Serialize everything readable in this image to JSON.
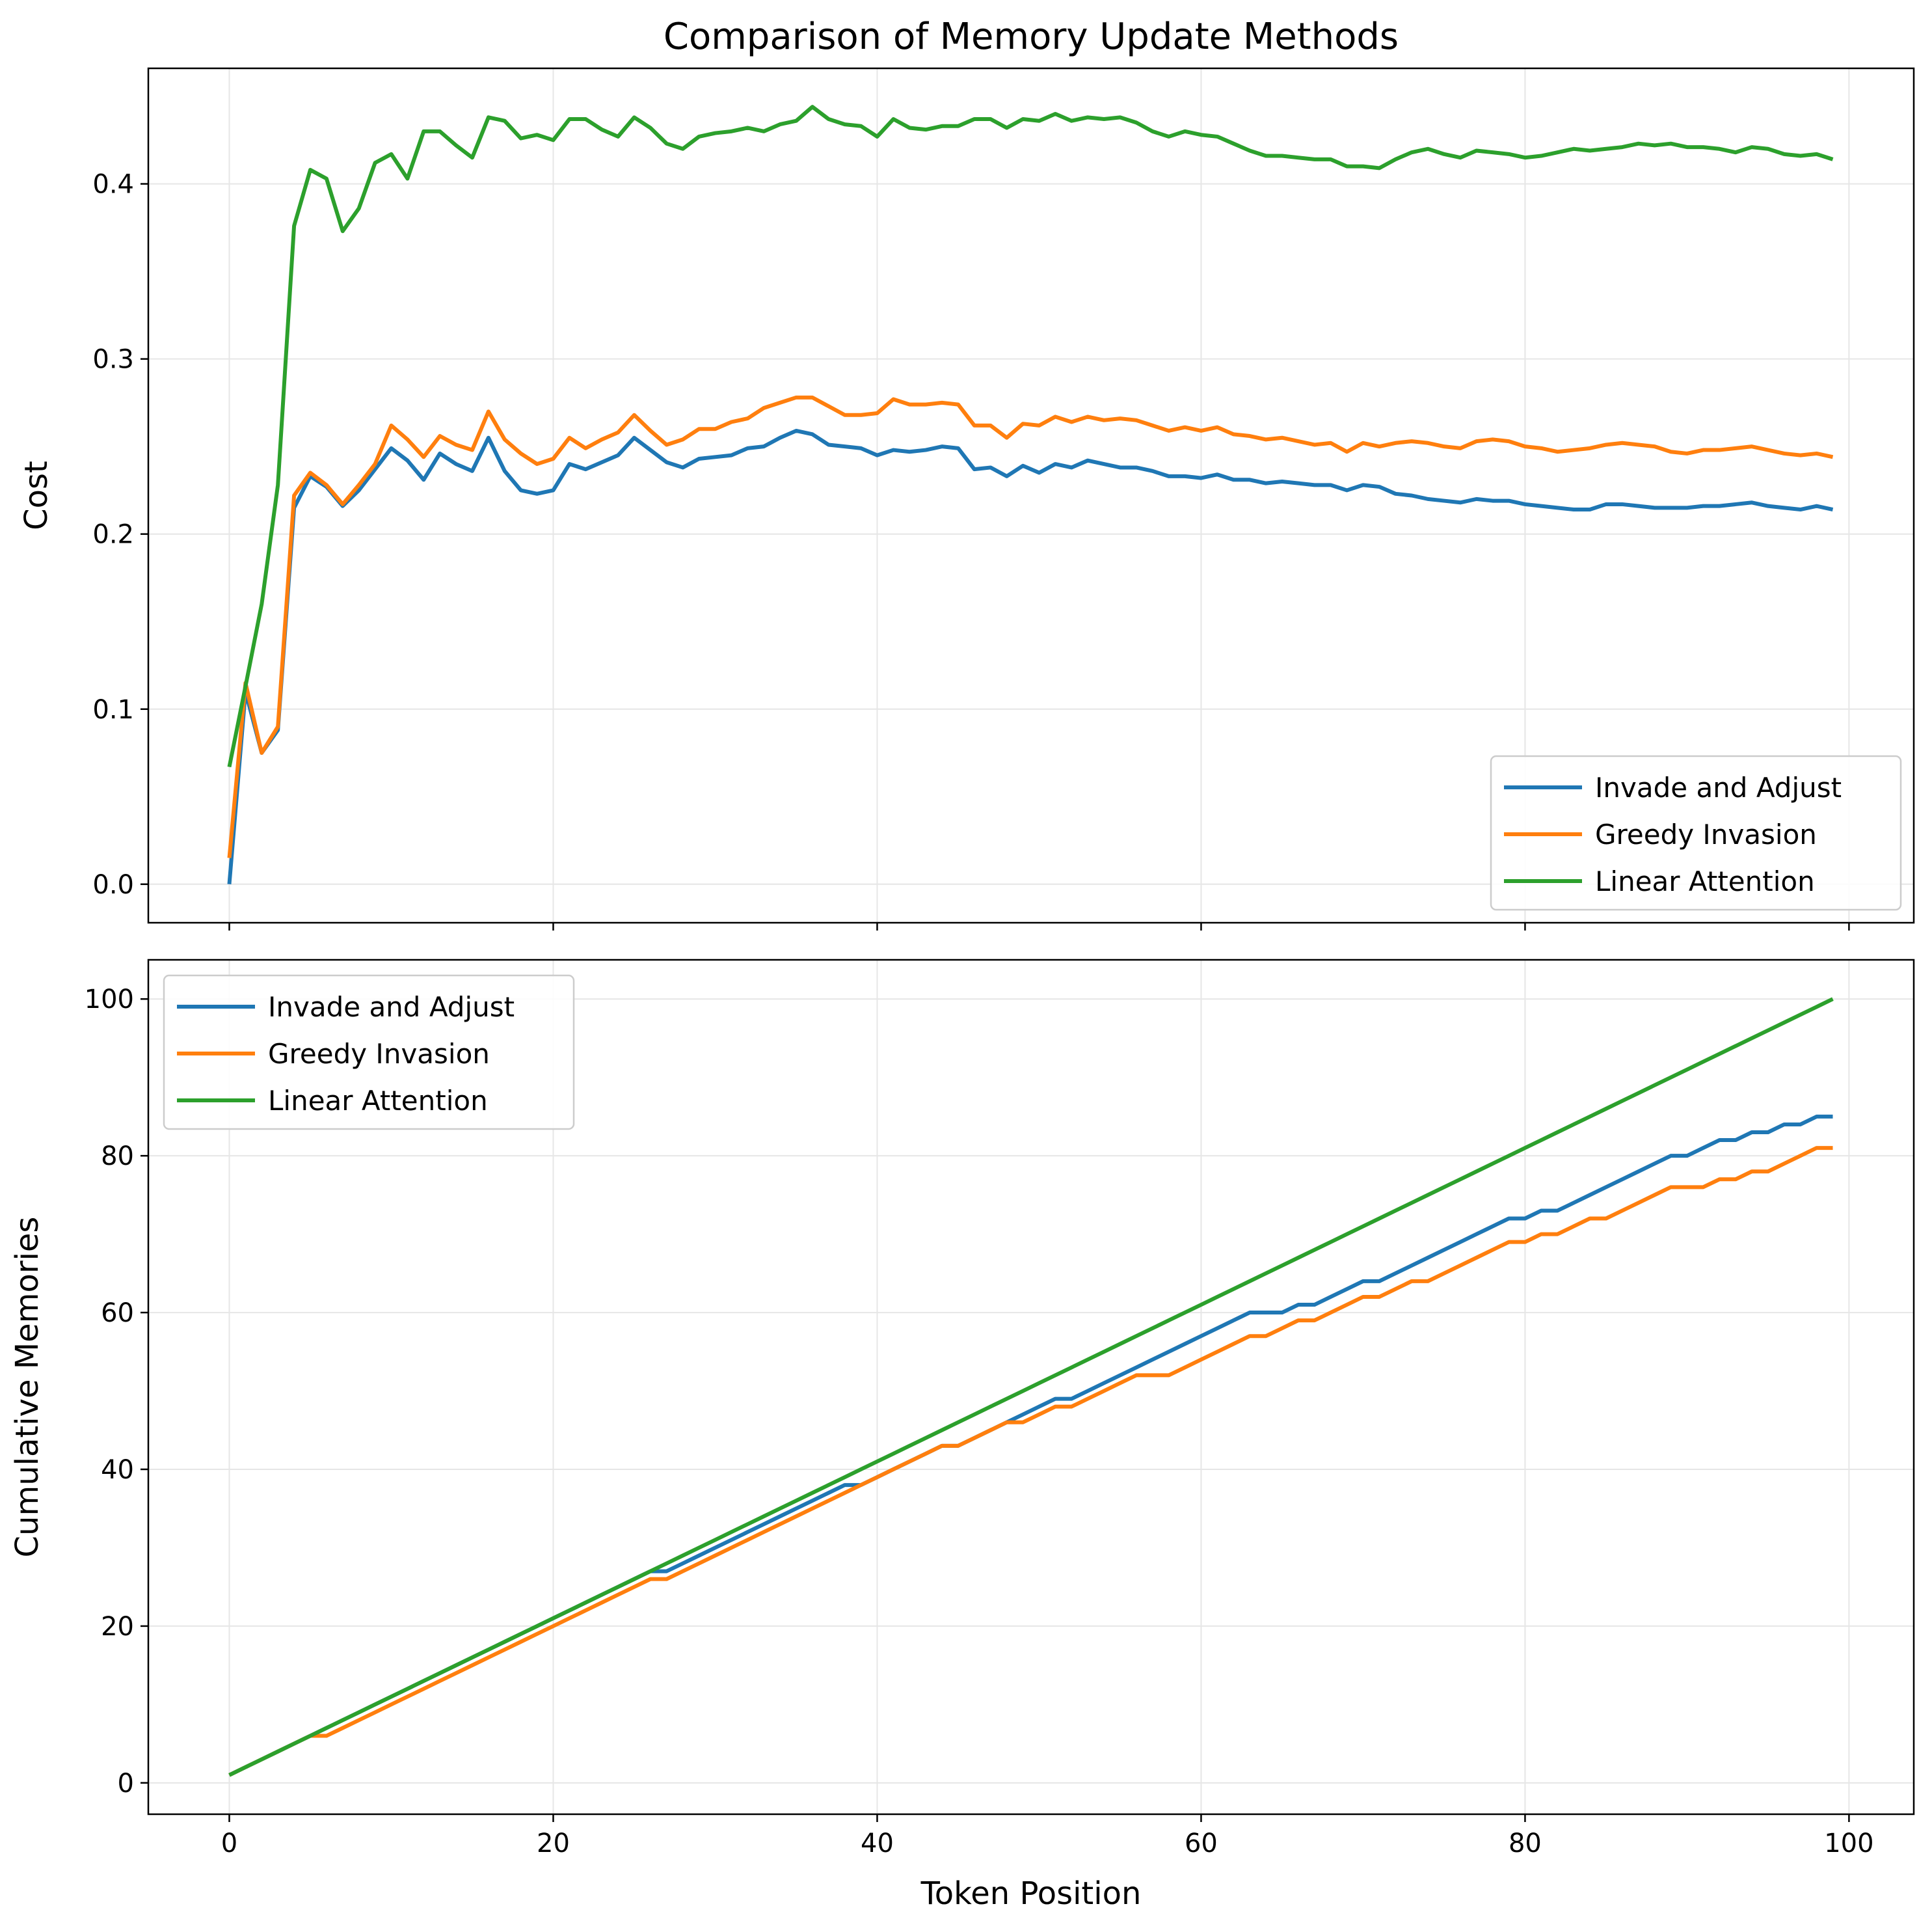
{
  "title": "Comparison of Memory Update Methods",
  "chart_data": [
    {
      "type": "line",
      "xlabel": "",
      "ylabel": "Cost",
      "xlim": [
        -5,
        104
      ],
      "ylim": [
        -0.022,
        0.466
      ],
      "xticks": [
        0,
        20,
        40,
        60,
        80,
        100
      ],
      "yticks": [
        0.0,
        0.1,
        0.2,
        0.3,
        0.4
      ],
      "yticklabels": [
        "0.0",
        "0.1",
        "0.2",
        "0.3",
        "0.4"
      ],
      "show_xticklabels": false,
      "grid": true,
      "legend_loc": "lower-right",
      "series": [
        {
          "name": "Invade and Adjust",
          "color": "#1f77b4",
          "values": [
            0.0,
            0.11,
            0.075,
            0.088,
            0.215,
            0.233,
            0.227,
            0.216,
            0.225,
            0.237,
            0.249,
            0.242,
            0.231,
            0.246,
            0.24,
            0.236,
            0.255,
            0.236,
            0.225,
            0.223,
            0.225,
            0.24,
            0.237,
            0.241,
            0.245,
            0.255,
            0.248,
            0.241,
            0.238,
            0.243,
            0.244,
            0.245,
            0.249,
            0.25,
            0.255,
            0.259,
            0.257,
            0.251,
            0.25,
            0.249,
            0.245,
            0.248,
            0.247,
            0.248,
            0.25,
            0.249,
            0.237,
            0.238,
            0.233,
            0.239,
            0.235,
            0.24,
            0.238,
            0.242,
            0.24,
            0.238,
            0.238,
            0.236,
            0.233,
            0.233,
            0.232,
            0.234,
            0.231,
            0.231,
            0.229,
            0.23,
            0.229,
            0.228,
            0.228,
            0.225,
            0.228,
            0.227,
            0.223,
            0.222,
            0.22,
            0.219,
            0.218,
            0.22,
            0.219,
            0.219,
            0.217,
            0.216,
            0.215,
            0.214,
            0.214,
            0.217,
            0.217,
            0.216,
            0.215,
            0.215,
            0.215,
            0.216,
            0.216,
            0.217,
            0.218,
            0.216,
            0.215,
            0.214,
            0.216,
            0.214
          ]
        },
        {
          "name": "Greedy Invasion",
          "color": "#ff7f0e",
          "values": [
            0.015,
            0.115,
            0.075,
            0.09,
            0.222,
            0.235,
            0.228,
            0.217,
            0.228,
            0.24,
            0.262,
            0.254,
            0.244,
            0.256,
            0.251,
            0.248,
            0.27,
            0.254,
            0.246,
            0.24,
            0.243,
            0.255,
            0.249,
            0.254,
            0.258,
            0.268,
            0.259,
            0.251,
            0.254,
            0.26,
            0.26,
            0.264,
            0.266,
            0.272,
            0.275,
            0.278,
            0.278,
            0.273,
            0.268,
            0.268,
            0.269,
            0.277,
            0.274,
            0.274,
            0.275,
            0.274,
            0.262,
            0.262,
            0.255,
            0.263,
            0.262,
            0.267,
            0.264,
            0.267,
            0.265,
            0.266,
            0.265,
            0.262,
            0.259,
            0.261,
            0.259,
            0.261,
            0.257,
            0.256,
            0.254,
            0.255,
            0.253,
            0.251,
            0.252,
            0.247,
            0.252,
            0.25,
            0.252,
            0.253,
            0.252,
            0.25,
            0.249,
            0.253,
            0.254,
            0.253,
            0.25,
            0.249,
            0.247,
            0.248,
            0.249,
            0.251,
            0.252,
            0.251,
            0.25,
            0.247,
            0.246,
            0.248,
            0.248,
            0.249,
            0.25,
            0.248,
            0.246,
            0.245,
            0.246,
            0.244
          ]
        },
        {
          "name": "Linear Attention",
          "color": "#2ca02c",
          "values": [
            0.067,
            0.113,
            0.16,
            0.228,
            0.376,
            0.408,
            0.403,
            0.373,
            0.386,
            0.412,
            0.417,
            0.403,
            0.43,
            0.43,
            0.422,
            0.415,
            0.438,
            0.436,
            0.426,
            0.428,
            0.425,
            0.437,
            0.437,
            0.431,
            0.427,
            0.438,
            0.432,
            0.423,
            0.42,
            0.427,
            0.429,
            0.43,
            0.432,
            0.43,
            0.434,
            0.436,
            0.444,
            0.437,
            0.434,
            0.433,
            0.427,
            0.437,
            0.432,
            0.431,
            0.433,
            0.433,
            0.437,
            0.437,
            0.432,
            0.437,
            0.436,
            0.44,
            0.436,
            0.438,
            0.437,
            0.438,
            0.435,
            0.43,
            0.427,
            0.43,
            0.428,
            0.427,
            0.423,
            0.419,
            0.416,
            0.416,
            0.415,
            0.414,
            0.414,
            0.41,
            0.41,
            0.409,
            0.414,
            0.418,
            0.42,
            0.417,
            0.415,
            0.419,
            0.418,
            0.417,
            0.415,
            0.416,
            0.418,
            0.42,
            0.419,
            0.42,
            0.421,
            0.423,
            0.422,
            0.423,
            0.421,
            0.421,
            0.42,
            0.418,
            0.421,
            0.42,
            0.417,
            0.416,
            0.417,
            0.414
          ]
        }
      ]
    },
    {
      "type": "line",
      "xlabel": "Token Position",
      "ylabel": "Cumulative Memories",
      "xlim": [
        -5,
        104
      ],
      "ylim": [
        -4,
        105
      ],
      "xticks": [
        0,
        20,
        40,
        60,
        80,
        100
      ],
      "yticks": [
        0,
        20,
        40,
        60,
        80,
        100
      ],
      "yticklabels": [
        "0",
        "20",
        "40",
        "60",
        "80",
        "100"
      ],
      "show_xticklabels": true,
      "grid": true,
      "legend_loc": "upper-left",
      "series": [
        {
          "name": "Invade and Adjust",
          "color": "#1f77b4",
          "values": [
            1,
            2,
            3,
            4,
            5,
            6,
            7,
            8,
            9,
            10,
            11,
            12,
            13,
            14,
            15,
            16,
            17,
            18,
            19,
            20,
            21,
            22,
            23,
            24,
            25,
            26,
            27,
            27,
            28,
            29,
            30,
            31,
            32,
            33,
            34,
            35,
            36,
            37,
            38,
            38,
            39,
            40,
            41,
            42,
            43,
            43,
            44,
            45,
            46,
            47,
            48,
            49,
            49,
            50,
            51,
            52,
            53,
            54,
            55,
            56,
            57,
            58,
            59,
            60,
            60,
            60,
            61,
            61,
            62,
            63,
            64,
            64,
            65,
            66,
            67,
            68,
            69,
            70,
            71,
            72,
            72,
            73,
            73,
            74,
            75,
            76,
            77,
            78,
            79,
            80,
            80,
            81,
            82,
            82,
            83,
            83,
            84,
            84,
            85,
            85
          ]
        },
        {
          "name": "Greedy Invasion",
          "color": "#ff7f0e",
          "values": [
            1,
            2,
            3,
            4,
            5,
            6,
            6,
            7,
            8,
            9,
            10,
            11,
            12,
            13,
            14,
            15,
            16,
            17,
            18,
            19,
            20,
            21,
            22,
            23,
            24,
            25,
            26,
            26,
            27,
            28,
            29,
            30,
            31,
            32,
            33,
            34,
            35,
            36,
            37,
            38,
            39,
            40,
            41,
            42,
            43,
            43,
            44,
            45,
            46,
            46,
            47,
            48,
            48,
            49,
            50,
            51,
            52,
            52,
            52,
            53,
            54,
            55,
            56,
            57,
            57,
            58,
            59,
            59,
            60,
            61,
            62,
            62,
            63,
            64,
            64,
            65,
            66,
            67,
            68,
            69,
            69,
            70,
            70,
            71,
            72,
            72,
            73,
            74,
            75,
            76,
            76,
            76,
            77,
            77,
            78,
            78,
            79,
            80,
            81,
            81
          ]
        },
        {
          "name": "Linear Attention",
          "color": "#2ca02c",
          "values": [
            1,
            2,
            3,
            4,
            5,
            6,
            7,
            8,
            9,
            10,
            11,
            12,
            13,
            14,
            15,
            16,
            17,
            18,
            19,
            20,
            21,
            22,
            23,
            24,
            25,
            26,
            27,
            28,
            29,
            30,
            31,
            32,
            33,
            34,
            35,
            36,
            37,
            38,
            39,
            40,
            41,
            42,
            43,
            44,
            45,
            46,
            47,
            48,
            49,
            50,
            51,
            52,
            53,
            54,
            55,
            56,
            57,
            58,
            59,
            60,
            61,
            62,
            63,
            64,
            65,
            66,
            67,
            68,
            69,
            70,
            71,
            72,
            73,
            74,
            75,
            76,
            77,
            78,
            79,
            80,
            81,
            82,
            83,
            84,
            85,
            86,
            87,
            88,
            89,
            90,
            91,
            92,
            93,
            94,
            95,
            96,
            97,
            98,
            99,
            100
          ]
        }
      ]
    }
  ]
}
